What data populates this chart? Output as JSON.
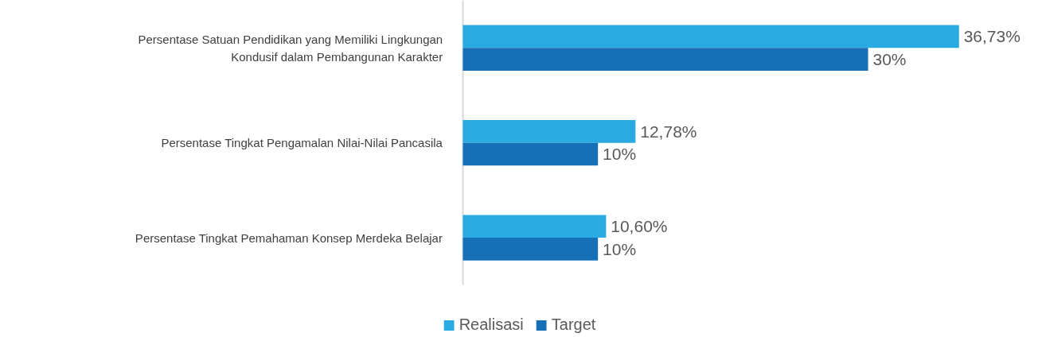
{
  "chart_data": {
    "type": "bar",
    "orientation": "horizontal",
    "legend": "bottom",
    "categories": [
      "Persentase Satuan Pendidikan yang Memiliki Lingkungan Kondusif dalam Pembangunan Karakter",
      "Persentase Tingkat Pengamalan Nilai-Nilai Pancasila",
      "Persentase Tingkat Pemahaman Konsep Merdeka Belajar"
    ],
    "series": [
      {
        "name": "Realisasi",
        "color": "#29abe2",
        "values": [
          36.73,
          12.78,
          10.6
        ],
        "value_labels": [
          "36,73%",
          "12,78%",
          "10,60%"
        ]
      },
      {
        "name": "Target",
        "color": "#1570b8",
        "values": [
          30,
          10,
          10
        ],
        "value_labels": [
          "30%",
          "10%",
          "10%"
        ]
      }
    ]
  }
}
